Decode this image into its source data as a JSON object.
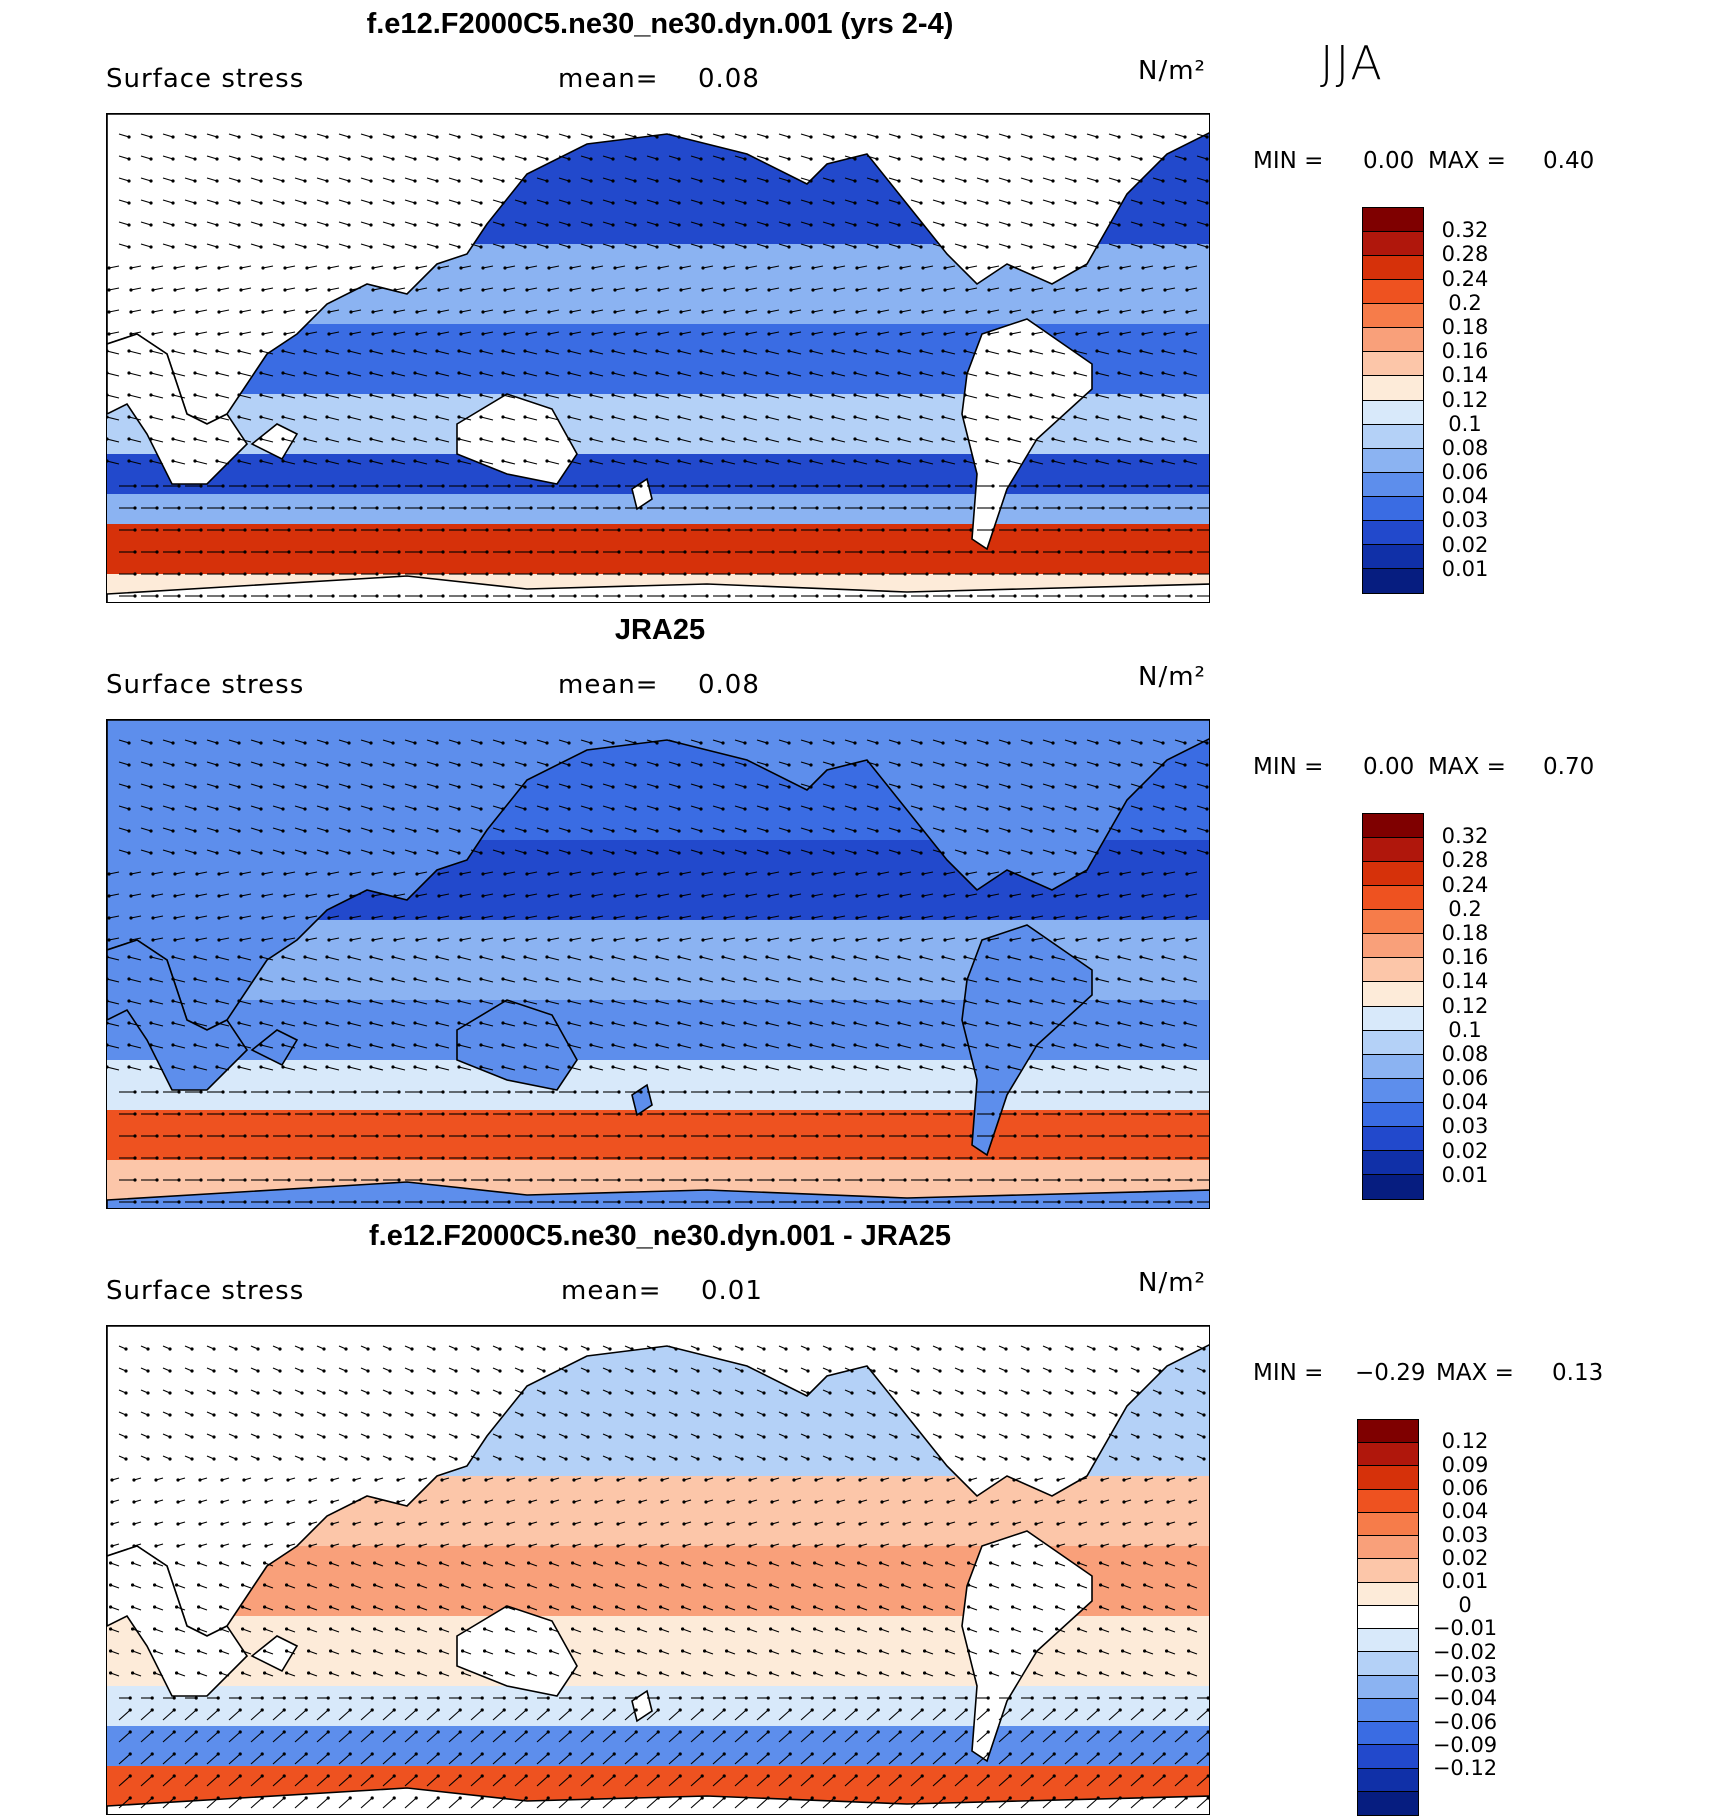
{
  "season": "JJA",
  "panels": [
    {
      "title": "f.e12.F2000C5.ne30_ne30.dyn.001 (yrs 2-4)",
      "variable": "Surface stress",
      "mean_label": "mean=",
      "mean": "0.08",
      "units": "N/m²",
      "min_label": "MIN =",
      "min": "0.00",
      "max_label": "MAX =",
      "max": "0.40",
      "colorbar_ticks": [
        "0.32",
        "0.28",
        "0.24",
        "0.2",
        "0.18",
        "0.16",
        "0.14",
        "0.12",
        "0.1",
        "0.08",
        "0.06",
        "0.04",
        "0.03",
        "0.02",
        "0.01"
      ]
    },
    {
      "title": "JRA25",
      "variable": "Surface stress",
      "mean_label": "mean=",
      "mean": "0.08",
      "units": "N/m²",
      "min_label": "MIN =",
      "min": "0.00",
      "max_label": "MAX =",
      "max": "0.70",
      "colorbar_ticks": [
        "0.32",
        "0.28",
        "0.24",
        "0.2",
        "0.18",
        "0.16",
        "0.14",
        "0.12",
        "0.1",
        "0.08",
        "0.06",
        "0.04",
        "0.03",
        "0.02",
        "0.01"
      ]
    },
    {
      "title": "f.e12.F2000C5.ne30_ne30.dyn.001 - JRA25",
      "variable": "Surface stress",
      "mean_label": "mean=",
      "mean": "0.01",
      "units": "N/m²",
      "min_label": "MIN =",
      "min": "−0.29",
      "max_label": "MAX =",
      "max": "0.13",
      "colorbar_ticks": [
        "0.12",
        "0.09",
        "0.06",
        "0.04",
        "0.03",
        "0.02",
        "0.01",
        "0",
        "−0.01",
        "−0.02",
        "−0.03",
        "−0.04",
        "−0.06",
        "−0.09",
        "−0.12"
      ]
    }
  ],
  "colors": {
    "abs_scale": [
      "#7f0000",
      "#b0170c",
      "#d6310a",
      "#ee5220",
      "#f67c4a",
      "#f9a07a",
      "#fcc6a9",
      "#fdebd9",
      "#d8e9fa",
      "#b4d1f7",
      "#8bb3f2",
      "#5d8eec",
      "#3a6ce3",
      "#2249cc",
      "#1030a8",
      "#061d80"
    ],
    "diff_scale": [
      "#7f0000",
      "#b0170c",
      "#d6310a",
      "#ee5220",
      "#f67c4a",
      "#f9a07a",
      "#fcc6a9",
      "#fdebd9",
      "#ffffff",
      "#d8e9fa",
      "#b4d1f7",
      "#8bb3f2",
      "#5d8eec",
      "#3a6ce3",
      "#2249cc",
      "#1030a8",
      "#061d80"
    ]
  }
}
